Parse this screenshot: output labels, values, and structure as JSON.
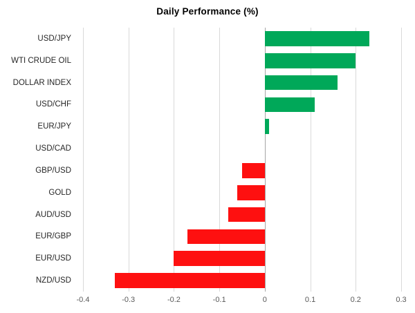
{
  "chart_data": {
    "type": "bar",
    "orientation": "horizontal",
    "title": "Daily Performance (%)",
    "categories": [
      "USD/JPY",
      "WTI CRUDE OIL",
      "DOLLAR INDEX",
      "USD/CHF",
      "EUR/JPY",
      "USD/CAD",
      "GBP/USD",
      "GOLD",
      "AUD/USD",
      "EUR/GBP",
      "EUR/USD",
      "NZD/USD"
    ],
    "values": [
      0.23,
      0.2,
      0.16,
      0.11,
      0.01,
      0,
      -0.05,
      -0.06,
      -0.08,
      -0.17,
      -0.2,
      -0.33
    ],
    "xlim": [
      -0.4,
      0.3
    ],
    "x_ticks": [
      -0.4,
      -0.3,
      -0.2,
      -0.1,
      0,
      0.1,
      0.2,
      0.3
    ],
    "x_tick_labels": [
      "-0.4",
      "-0.3",
      "-0.2",
      "-0.1",
      "0",
      "0.1",
      "0.2",
      "0.3"
    ],
    "grid": "vertical",
    "legend": "none",
    "colors": {
      "positive": "#00a859",
      "negative": "#fe1010",
      "gridline": "#d9d9d9",
      "zero_line": "#a6a6a6",
      "tick_label": "#595959",
      "category_label": "#262626"
    }
  }
}
